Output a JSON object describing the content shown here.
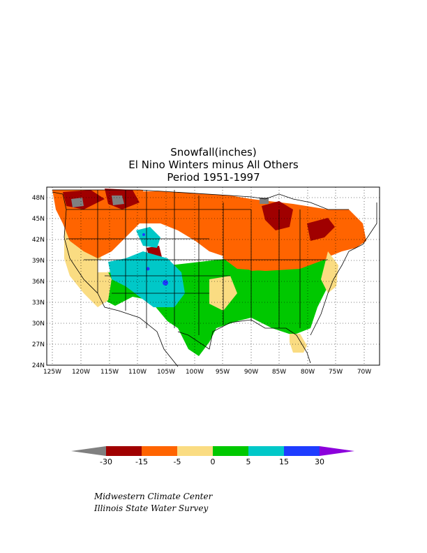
{
  "title": {
    "line1": "Snowfall(inches)",
    "line2": "El Nino Winters minus All Others",
    "line3": "Period 1951-1997"
  },
  "map": {
    "lat_labels": [
      "48N",
      "45N",
      "42N",
      "39N",
      "36N",
      "33N",
      "30N",
      "27N",
      "24N"
    ],
    "lon_labels": [
      "125W",
      "120W",
      "115W",
      "110W",
      "105W",
      "100W",
      "95W",
      "90W",
      "85W",
      "80W",
      "75W",
      "70W"
    ]
  },
  "colorbar": {
    "labels": [
      "-30",
      "-15",
      "-5",
      "0",
      "5",
      "15",
      "30"
    ],
    "colors": {
      "lt_minus30": "#808080",
      "minus30_to_minus15": "#a00000",
      "minus15_to_minus5": "#ff6400",
      "minus5_to_0": "#fadc82",
      "0_to_5": "#00c800",
      "5_to_15": "#00c8c8",
      "15_to_30": "#1e3cff",
      "gt_30": "#8c00dc"
    }
  },
  "credits": {
    "line1": "Midwestern Climate Center",
    "line2": "Illinois State Water Survey"
  }
}
